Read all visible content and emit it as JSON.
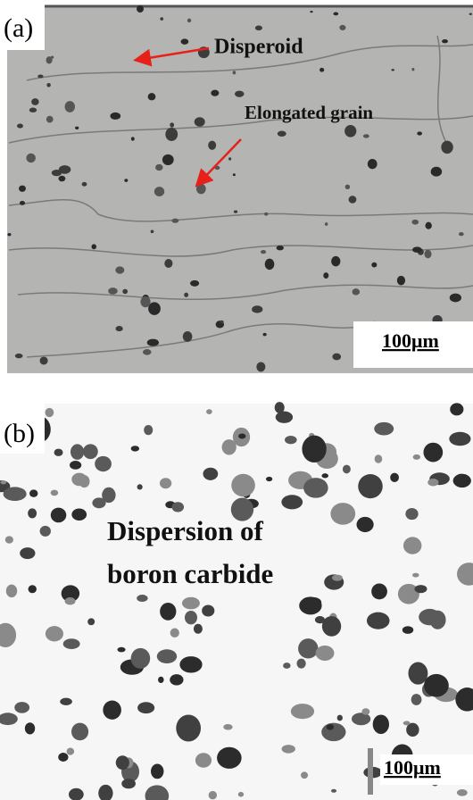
{
  "panels": [
    {
      "label": "(a)",
      "annotations": [
        "Disperoid",
        "Elongated grain"
      ],
      "scale_bar": "100μm"
    },
    {
      "label": "(b)",
      "annotations": [
        "Dispersion of",
        "boron carbide"
      ],
      "scale_bar": "100μm"
    }
  ]
}
